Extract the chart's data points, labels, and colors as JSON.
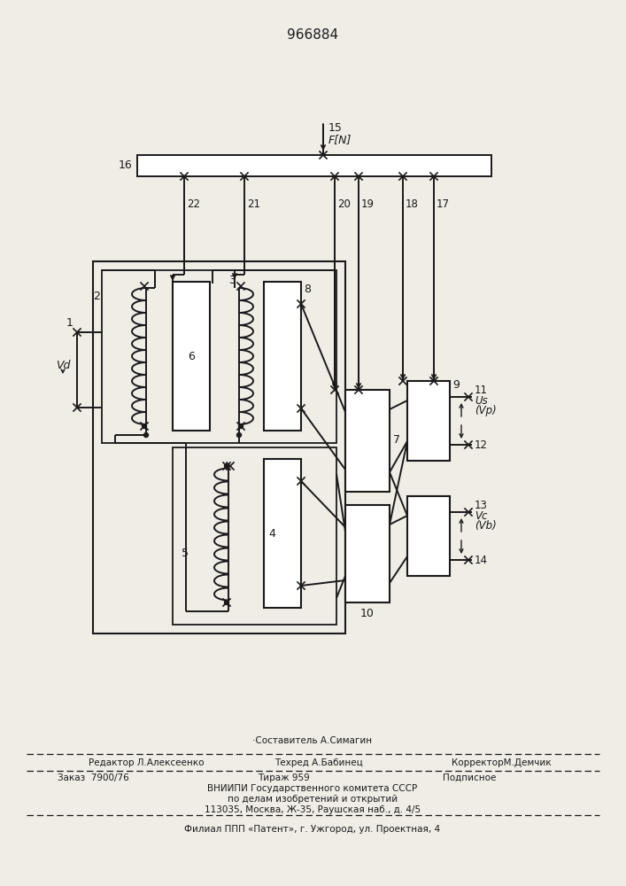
{
  "title": "966884",
  "bg_color": "#f0ede6",
  "line_color": "#1a1a1a",
  "footer_composer": "Составитель А.Симагин",
  "footer_editor": "Редактор Л.Алексеенко",
  "footer_techred": "Техред А.Бабинец",
  "footer_corrector": "КорректорМ.Демчик",
  "footer_order": "Заказ  7900/76",
  "footer_tirazh": "Тираж 959",
  "footer_podp": "Подписное",
  "footer_vniip1": "ВНИИПИ Государственного комитета СССР",
  "footer_vniip2": "по делам изобретений и открытий",
  "footer_addr": "113035, Москва, Ж-35, Раушская наб., д. 4/5",
  "footer_filial": "Филиал ППП «Патент», г. Ужгород, ул. Проектная, 4"
}
